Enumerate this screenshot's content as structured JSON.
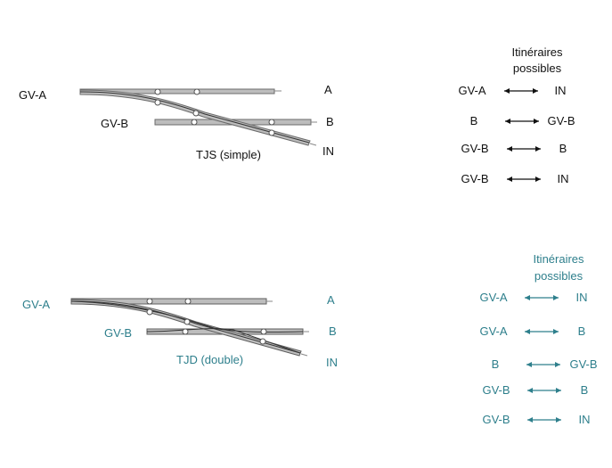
{
  "colors": {
    "black": "#111111",
    "teal": "#2e7f8c",
    "rail_fill": "#bdbdbd",
    "rail_stroke": "#6b6b6b"
  },
  "tjs": {
    "title": "TJS (simple)",
    "label_gva": "GV-A",
    "label_gvb": "GV-B",
    "label_a": "A",
    "label_b": "B",
    "label_in": "IN",
    "routes_header_1": "Itinéraires",
    "routes_header_2": "possibles",
    "routes": [
      {
        "from": "GV-A",
        "to": "IN"
      },
      {
        "from": "B",
        "to": "GV-B"
      },
      {
        "from": "GV-B",
        "to": "B"
      },
      {
        "from": "GV-B",
        "to": "IN"
      }
    ]
  },
  "tjd": {
    "title": "TJD (double)",
    "label_gva": "GV-A",
    "label_gvb": "GV-B",
    "label_a": "A",
    "label_b": "B",
    "label_in": "IN",
    "routes_header_1": "Itinéraires",
    "routes_header_2": "possibles",
    "routes": [
      {
        "from": "GV-A",
        "to": "IN"
      },
      {
        "from": "GV-A",
        "to": "B"
      },
      {
        "from": "B",
        "to": "GV-B"
      },
      {
        "from": "GV-B",
        "to": "B"
      },
      {
        "from": "GV-B",
        "to": "IN"
      }
    ]
  }
}
